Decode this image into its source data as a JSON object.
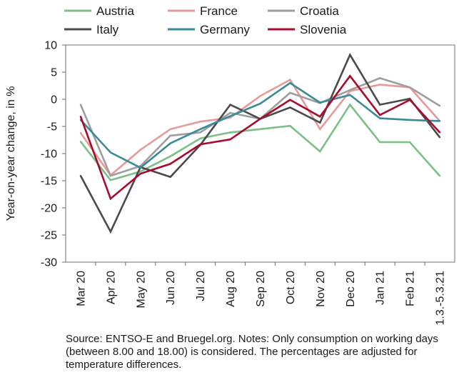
{
  "chart_data": {
    "type": "line",
    "ylabel": "Year-on-year change, in %",
    "ylim": [
      -30,
      10
    ],
    "yticks": [
      10,
      5,
      0,
      -5,
      -10,
      -15,
      -20,
      -25,
      -30
    ],
    "categories": [
      "Mar 20",
      "Apr 20",
      "May 20",
      "Jun 20",
      "Jul 20",
      "Aug 20",
      "Sep 20",
      "Oct 20",
      "Nov 20",
      "Dec 20",
      "Jan 21",
      "Feb 21",
      "1.3.-5.3.21"
    ],
    "legend_position": "top",
    "grid": false,
    "series": [
      {
        "name": "Austria",
        "color": "#7dbf86",
        "values": [
          -7.8,
          -14.9,
          -13.3,
          -10.5,
          -7.2,
          -6.1,
          -5.5,
          -4.9,
          -9.6,
          -1.0,
          -7.9,
          -7.9,
          -14.1
        ]
      },
      {
        "name": "France",
        "color": "#e79a9a",
        "values": [
          -6.2,
          -14.0,
          -9.3,
          -5.5,
          -4.1,
          -3.4,
          0.6,
          3.6,
          -5.5,
          1.5,
          2.7,
          2.2,
          -4.0
        ]
      },
      {
        "name": "Croatia",
        "color": "#9e9e9e",
        "values": [
          -1.0,
          -14.1,
          -12.3,
          -6.7,
          -6.1,
          -2.5,
          -3.6,
          1.2,
          -0.7,
          1.7,
          3.9,
          2.2,
          -1.2
        ]
      },
      {
        "name": "Italy",
        "color": "#4a4a4a",
        "values": [
          -14.1,
          -24.4,
          -12.5,
          -14.3,
          -8.4,
          -1.0,
          -3.6,
          -1.5,
          -4.3,
          8.2,
          -1.0,
          0.1,
          -7.0
        ]
      },
      {
        "name": "Germany",
        "color": "#3a8a98",
        "values": [
          -3.8,
          -9.8,
          -12.6,
          -8.1,
          -5.5,
          -3.1,
          -0.8,
          3.0,
          -0.6,
          0.8,
          -3.5,
          -3.8,
          -4.0
        ]
      },
      {
        "name": "Slovenia",
        "color": "#a80b2e",
        "values": [
          -3.2,
          -18.3,
          -13.7,
          -11.9,
          -8.3,
          -7.4,
          -3.6,
          -0.1,
          -3.2,
          4.3,
          -2.9,
          -0.1,
          -6.1
        ]
      }
    ]
  },
  "source_note": "Source: ENTSO-E and Bruegel.org. Notes: Only consumption on working days (between 8.00 and 18.00) is considered. The percentages are adjusted for temperature differences."
}
